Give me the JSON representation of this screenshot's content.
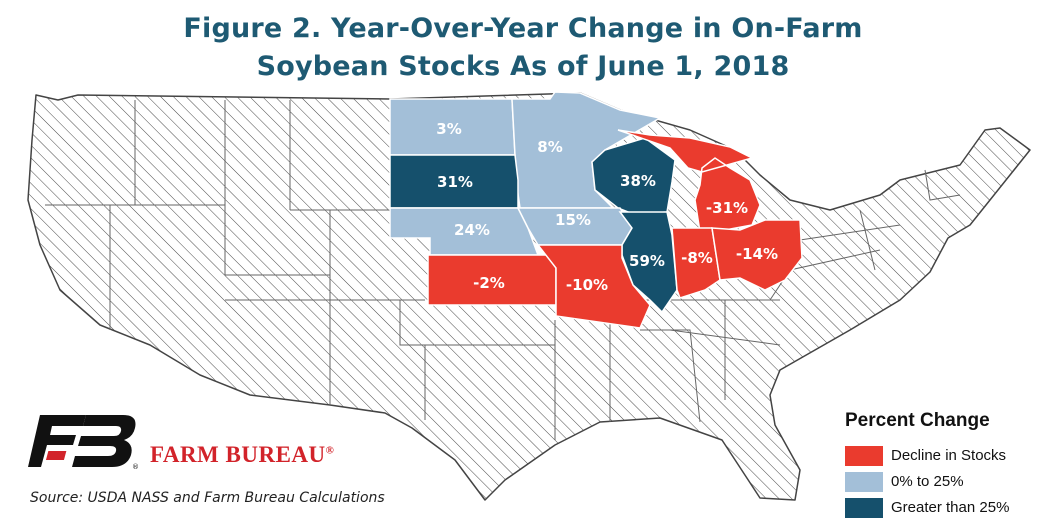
{
  "title": {
    "line1": "Figure 2. Year-Over-Year Change in On-Farm",
    "line2": "Soybean Stocks As of June 1, 2018"
  },
  "colors": {
    "decline": "#ea3b2e",
    "low_increase": "#a3bfd8",
    "high_increase": "#15506c",
    "unreported_hatch": "#4a4a4a",
    "title": "#1e5a73",
    "brand": "#d2232a"
  },
  "states": [
    {
      "id": "ND",
      "label": "3%",
      "category": "low_increase"
    },
    {
      "id": "MN",
      "label": "8%",
      "category": "low_increase"
    },
    {
      "id": "SD",
      "label": "31%",
      "category": "high_increase"
    },
    {
      "id": "WI",
      "label": "38%",
      "category": "high_increase"
    },
    {
      "id": "MI",
      "label": "-31%",
      "category": "decline"
    },
    {
      "id": "NE",
      "label": "24%",
      "category": "low_increase"
    },
    {
      "id": "IA",
      "label": "15%",
      "category": "low_increase"
    },
    {
      "id": "IL",
      "label": "59%",
      "category": "high_increase"
    },
    {
      "id": "IN",
      "label": "-8%",
      "category": "decline"
    },
    {
      "id": "OH",
      "label": "-14%",
      "category": "decline"
    },
    {
      "id": "KS",
      "label": "-2%",
      "category": "decline"
    },
    {
      "id": "MO",
      "label": "-10%",
      "category": "decline"
    }
  ],
  "legend": {
    "title": "Percent Change",
    "items": [
      {
        "label": "Decline in Stocks",
        "category": "decline"
      },
      {
        "label": "0% to 25%",
        "category": "low_increase"
      },
      {
        "label": "Greater than 25%",
        "category": "high_increase"
      }
    ]
  },
  "brand": {
    "name": "FARM BUREAU",
    "mark": "®"
  },
  "source": "Source: USDA NASS and Farm Bureau Calculations"
}
